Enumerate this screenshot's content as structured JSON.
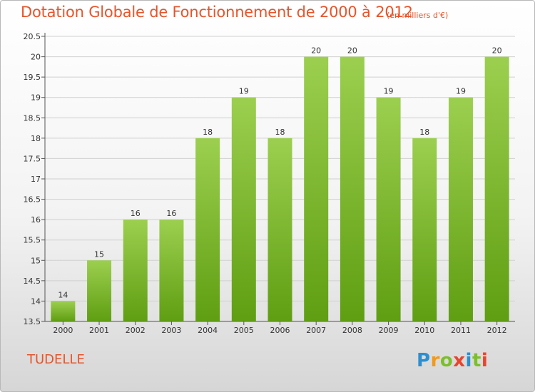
{
  "header": {
    "title": "Dotation Globale de Fonctionnement de 2000 à 2012",
    "unit": "(en milliers d'€)"
  },
  "footer": {
    "commune": "TUDELLE",
    "brand": {
      "letters": [
        "P",
        "r",
        "o",
        "x",
        "i",
        "t",
        "i"
      ],
      "colors": [
        "#2b8fd0",
        "#f29a1a",
        "#7bbf2a",
        "#e8442e",
        "#2b8fd0",
        "#7bbf2a",
        "#e8442e"
      ]
    }
  },
  "chart_data": {
    "type": "bar",
    "categories": [
      "2000",
      "2001",
      "2002",
      "2003",
      "2004",
      "2005",
      "2006",
      "2007",
      "2008",
      "2009",
      "2010",
      "2011",
      "2012"
    ],
    "values": [
      14,
      15,
      16,
      16,
      18,
      19,
      18,
      20,
      20,
      19,
      18,
      19,
      20
    ],
    "bar_labels": [
      "14",
      "15",
      "16",
      "16",
      "18",
      "19",
      "18",
      "20",
      "20",
      "19",
      "18",
      "19",
      "20"
    ],
    "y_ticks": [
      13.5,
      14,
      14.5,
      15,
      15.5,
      16,
      16.5,
      17,
      17.5,
      18,
      18.5,
      19,
      19.5,
      20,
      20.5
    ],
    "y_tick_labels": [
      "13.5",
      "14",
      "14.5",
      "15",
      "15.5",
      "16",
      "16.5",
      "17",
      "17.5",
      "18",
      "18.5",
      "19",
      "19.5",
      "20",
      "20.5"
    ],
    "ylim": [
      13.5,
      20.5
    ],
    "grid": true,
    "colors": {
      "bar_top": "#9ccf4f",
      "bar_bottom": "#5f9e12",
      "grid": "#d0d0d0",
      "axis": "#555555"
    }
  }
}
